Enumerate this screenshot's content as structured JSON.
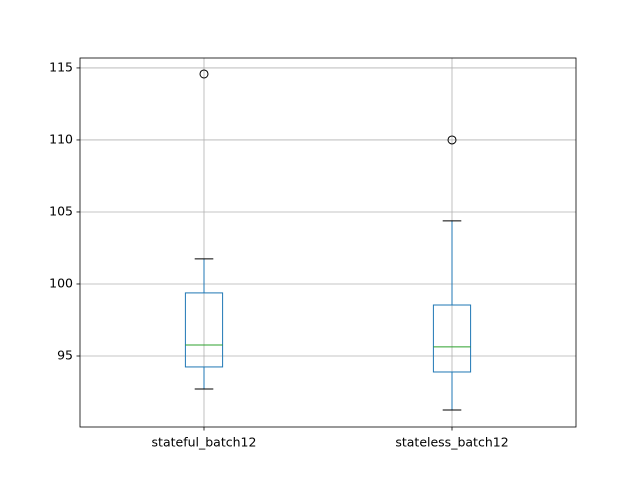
{
  "chart_data": {
    "type": "box",
    "categories": [
      "stateful_batch12",
      "stateless_batch12"
    ],
    "boxes": [
      {
        "whislo": 92.71,
        "q1": 94.24,
        "med": 95.76,
        "q3": 99.38,
        "whishi": 101.74,
        "fliers": [
          114.58
        ]
      },
      {
        "whislo": 91.25,
        "q1": 93.89,
        "med": 95.63,
        "q3": 98.54,
        "whishi": 104.38,
        "fliers": [
          110.0
        ]
      }
    ],
    "box_color": "#1f77b4",
    "median_color": "#2ca02c",
    "whisker_color": "#000000",
    "ylim": [
      90.07,
      115.69
    ],
    "yticks": [
      95,
      100,
      105,
      110,
      115
    ],
    "grid": true
  }
}
